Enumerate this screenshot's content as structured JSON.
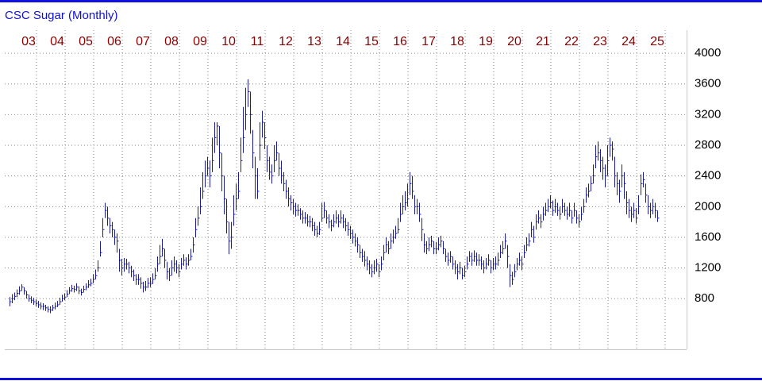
{
  "chart_data": {
    "type": "ohlc",
    "title": "CSC Sugar (Monthly)",
    "color": "#1c1ca0",
    "label_color": "#8b0000",
    "grid": true,
    "y_axis_side": "right",
    "ylim": [
      140,
      4260
    ],
    "yticks": [
      800,
      1200,
      1600,
      2000,
      2400,
      2800,
      3200,
      3600,
      4000
    ],
    "categories": [
      null,
      null,
      null,
      null,
      null,
      null,
      null,
      null,
      "03",
      null,
      null,
      null,
      null,
      null,
      null,
      null,
      null,
      null,
      null,
      null,
      "04",
      null,
      null,
      null,
      null,
      null,
      null,
      null,
      null,
      null,
      null,
      null,
      "05",
      null,
      null,
      null,
      null,
      null,
      null,
      null,
      null,
      null,
      null,
      null,
      "06",
      null,
      null,
      null,
      null,
      null,
      null,
      null,
      null,
      null,
      null,
      null,
      "07",
      null,
      null,
      null,
      null,
      null,
      null,
      null,
      null,
      null,
      null,
      null,
      "08",
      null,
      null,
      null,
      null,
      null,
      null,
      null,
      null,
      null,
      null,
      null,
      "09",
      null,
      null,
      null,
      null,
      null,
      null,
      null,
      null,
      null,
      null,
      null,
      "10",
      null,
      null,
      null,
      null,
      null,
      null,
      null,
      null,
      null,
      null,
      null,
      "11",
      null,
      null,
      null,
      null,
      null,
      null,
      null,
      null,
      null,
      null,
      null,
      "12",
      null,
      null,
      null,
      null,
      null,
      null,
      null,
      null,
      null,
      null,
      null,
      "13",
      null,
      null,
      null,
      null,
      null,
      null,
      null,
      null,
      null,
      null,
      null,
      "14",
      null,
      null,
      null,
      null,
      null,
      null,
      null,
      null,
      null,
      null,
      null,
      "15",
      null,
      null,
      null,
      null,
      null,
      null,
      null,
      null,
      null,
      null,
      null,
      "16",
      null,
      null,
      null,
      null,
      null,
      null,
      null,
      null,
      null,
      null,
      null,
      "17",
      null,
      null,
      null,
      null,
      null,
      null,
      null,
      null,
      null,
      null,
      null,
      "18",
      null,
      null,
      null,
      null,
      null,
      null,
      null,
      null,
      null,
      null,
      null,
      "19",
      null,
      null,
      null,
      null,
      null,
      null,
      null,
      null,
      null,
      null,
      null,
      "20",
      null,
      null,
      null,
      null,
      null,
      null,
      null,
      null,
      null,
      null,
      null,
      "21",
      null,
      null,
      null,
      null,
      null,
      null,
      null,
      null,
      null,
      null,
      null,
      "22",
      null,
      null,
      null,
      null,
      null,
      null,
      null,
      null,
      null,
      null,
      null,
      "23",
      null,
      null,
      null,
      null,
      null,
      null,
      null,
      null,
      null,
      null,
      null,
      "24",
      null,
      null,
      null,
      null,
      null,
      null,
      null,
      null,
      null,
      null,
      null,
      "25"
    ],
    "high": [
      820,
      860,
      880,
      920,
      960,
      990,
      950,
      900,
      850,
      830,
      810,
      790,
      770,
      750,
      740,
      720,
      700,
      700,
      720,
      750,
      770,
      810,
      850,
      870,
      910,
      950,
      980,
      970,
      1000,
      960,
      930,
      970,
      1000,
      1040,
      1060,
      1120,
      1180,
      1300,
      1550,
      1850,
      2050,
      2000,
      1850,
      1800,
      1700,
      1650,
      1450,
      1320,
      1330,
      1320,
      1280,
      1230,
      1180,
      1120,
      1120,
      1080,
      1020,
      1030,
      1070,
      1080,
      1130,
      1200,
      1350,
      1500,
      1580,
      1450,
      1280,
      1200,
      1300,
      1350,
      1300,
      1250,
      1330,
      1380,
      1340,
      1380,
      1450,
      1600,
      1850,
      2000,
      2250,
      2450,
      2600,
      2650,
      2600,
      2900,
      3100,
      3100,
      3050,
      2700,
      2400,
      2100,
      1800,
      1800,
      2150,
      2300,
      2450,
      2900,
      3300,
      3550,
      3660,
      3500,
      3000,
      2650,
      2500,
      3100,
      3250,
      3100,
      2800,
      2650,
      2550,
      2800,
      2850,
      2700,
      2600,
      2450,
      2350,
      2250,
      2150,
      2100,
      2050,
      2030,
      1980,
      1950,
      1930,
      1900,
      1880,
      1850,
      1800,
      1750,
      1800,
      2050,
      2060,
      1950,
      1900,
      1830,
      1900,
      1950,
      1900,
      1950,
      1900,
      1850,
      1800,
      1750,
      1700,
      1650,
      1600,
      1500,
      1450,
      1420,
      1350,
      1300,
      1250,
      1300,
      1320,
      1250,
      1350,
      1500,
      1600,
      1550,
      1650,
      1700,
      1750,
      1850,
      2050,
      2150,
      2200,
      2300,
      2450,
      2400,
      2150,
      2100,
      2050,
      1850,
      1650,
      1550,
      1600,
      1620,
      1550,
      1540,
      1600,
      1620,
      1550,
      1450,
      1400,
      1420,
      1350,
      1300,
      1250,
      1280,
      1200,
      1230,
      1350,
      1420,
      1400,
      1430,
      1400,
      1380,
      1350,
      1300,
      1330,
      1380,
      1300,
      1330,
      1350,
      1400,
      1500,
      1550,
      1650,
      1500,
      1250,
      1150,
      1250,
      1330,
      1400,
      1350,
      1500,
      1600,
      1650,
      1800,
      1750,
      1900,
      1950,
      1900,
      2000,
      2050,
      2100,
      2150,
      2080,
      2100,
      2050,
      2000,
      2100,
      2050,
      2000,
      2050,
      1950,
      2050,
      1950,
      1900,
      2000,
      2100,
      2250,
      2300,
      2400,
      2550,
      2800,
      2850,
      2750,
      2650,
      2550,
      2800,
      2900,
      2850,
      2650,
      2450,
      2350,
      2550,
      2450,
      2200,
      2100,
      2000,
      2050,
      1980,
      2150,
      2420,
      2450,
      2300,
      2150,
      2050,
      2100,
      2050,
      1950
    ],
    "low": [
      700,
      740,
      780,
      820,
      850,
      900,
      850,
      800,
      760,
      740,
      720,
      700,
      680,
      660,
      650,
      640,
      620,
      610,
      640,
      660,
      690,
      720,
      760,
      780,
      820,
      860,
      890,
      880,
      900,
      860,
      840,
      880,
      910,
      940,
      960,
      1000,
      1050,
      1150,
      1350,
      1600,
      1850,
      1750,
      1650,
      1600,
      1500,
      1400,
      1150,
      1100,
      1150,
      1180,
      1130,
      1080,
      1030,
      980,
      980,
      930,
      880,
      900,
      940,
      950,
      990,
      1050,
      1150,
      1250,
      1350,
      1200,
      1050,
      1030,
      1100,
      1150,
      1130,
      1080,
      1180,
      1230,
      1180,
      1230,
      1300,
      1400,
      1600,
      1750,
      1900,
      2100,
      2250,
      2400,
      2250,
      2450,
      2700,
      2800,
      2500,
      2200,
      1900,
      1650,
      1380,
      1450,
      1750,
      1950,
      2100,
      2450,
      2700,
      3000,
      3300,
      2950,
      2500,
      2100,
      2100,
      2600,
      2900,
      2750,
      2450,
      2350,
      2300,
      2450,
      2600,
      2400,
      2300,
      2200,
      2100,
      2000,
      1950,
      1900,
      1870,
      1880,
      1830,
      1780,
      1780,
      1740,
      1730,
      1680,
      1620,
      1600,
      1630,
      1800,
      1850,
      1780,
      1720,
      1680,
      1730,
      1780,
      1730,
      1780,
      1720,
      1680,
      1620,
      1580,
      1520,
      1480,
      1400,
      1330,
      1280,
      1220,
      1170,
      1120,
      1080,
      1120,
      1150,
      1080,
      1170,
      1300,
      1400,
      1380,
      1450,
      1520,
      1580,
      1650,
      1800,
      1900,
      1950,
      2000,
      2150,
      2100,
      1900,
      1900,
      1800,
      1550,
      1400,
      1380,
      1420,
      1470,
      1380,
      1380,
      1430,
      1470,
      1380,
      1280,
      1230,
      1270,
      1180,
      1120,
      1050,
      1120,
      1050,
      1080,
      1180,
      1280,
      1230,
      1280,
      1230,
      1230,
      1180,
      1130,
      1180,
      1230,
      1130,
      1170,
      1180,
      1230,
      1330,
      1380,
      1450,
      1200,
      950,
      980,
      1080,
      1170,
      1230,
      1170,
      1330,
      1420,
      1480,
      1600,
      1530,
      1700,
      1780,
      1720,
      1820,
      1880,
      1930,
      1980,
      1880,
      1920,
      1880,
      1830,
      1920,
      1880,
      1830,
      1870,
      1780,
      1870,
      1780,
      1730,
      1820,
      1920,
      2050,
      2120,
      2200,
      2300,
      2500,
      2600,
      2450,
      2350,
      2250,
      2400,
      2650,
      2600,
      2250,
      2150,
      2050,
      2250,
      2100,
      1900,
      1850,
      1800,
      1850,
      1780,
      1900,
      2150,
      2250,
      2050,
      1900,
      1850,
      1900,
      1850,
      1800
    ],
    "close": [
      760,
      800,
      830,
      870,
      900,
      950,
      900,
      850,
      800,
      780,
      760,
      740,
      720,
      700,
      700,
      680,
      660,
      650,
      680,
      700,
      720,
      760,
      800,
      820,
      860,
      900,
      930,
      920,
      950,
      900,
      880,
      920,
      950,
      980,
      1000,
      1050,
      1100,
      1200,
      1400,
      1700,
      1950,
      1850,
      1750,
      1700,
      1600,
      1550,
      1300,
      1200,
      1250,
      1250,
      1200,
      1150,
      1100,
      1050,
      1050,
      1000,
      950,
      950,
      1000,
      1000,
      1050,
      1100,
      1250,
      1350,
      1450,
      1300,
      1150,
      1100,
      1200,
      1250,
      1200,
      1150,
      1250,
      1300,
      1250,
      1300,
      1350,
      1500,
      1700,
      1850,
      2000,
      2200,
      2400,
      2500,
      2400,
      2600,
      2900,
      3050,
      2700,
      2400,
      2100,
      1800,
      1550,
      1600,
      1900,
      2100,
      2200,
      2600,
      2900,
      3200,
      3500,
      3200,
      2700,
      2400,
      2200,
      2800,
      3100,
      2900,
      2600,
      2450,
      2400,
      2600,
      2700,
      2500,
      2400,
      2300,
      2200,
      2100,
      2050,
      2000,
      1950,
      1950,
      1900,
      1850,
      1850,
      1800,
      1800,
      1750,
      1700,
      1650,
      1700,
      1850,
      1950,
      1850,
      1800,
      1750,
      1800,
      1850,
      1800,
      1850,
      1800,
      1750,
      1700,
      1650,
      1600,
      1550,
      1500,
      1400,
      1350,
      1300,
      1250,
      1200,
      1150,
      1200,
      1250,
      1150,
      1250,
      1400,
      1500,
      1450,
      1550,
      1600,
      1650,
      1700,
      1900,
      2000,
      2050,
      2100,
      2300,
      2200,
      2000,
      2000,
      1900,
      1700,
      1500,
      1450,
      1500,
      1550,
      1450,
      1450,
      1500,
      1550,
      1450,
      1350,
      1300,
      1350,
      1250,
      1200,
      1150,
      1200,
      1100,
      1150,
      1250,
      1350,
      1300,
      1350,
      1300,
      1300,
      1250,
      1200,
      1250,
      1300,
      1200,
      1250,
      1250,
      1300,
      1400,
      1450,
      1550,
      1350,
      1100,
      1050,
      1150,
      1250,
      1300,
      1250,
      1400,
      1500,
      1550,
      1700,
      1600,
      1800,
      1850,
      1800,
      1900,
      1950,
      2000,
      2050,
      1950,
      2000,
      1950,
      1900,
      2000,
      1950,
      1900,
      1950,
      1850,
      1950,
      1850,
      1800,
      1900,
      2000,
      2150,
      2200,
      2300,
      2400,
      2650,
      2700,
      2600,
      2500,
      2400,
      2600,
      2800,
      2750,
      2400,
      2300,
      2200,
      2400,
      2300,
      2050,
      1950,
      1900,
      1950,
      1850,
      2000,
      2300,
      2350,
      2150,
      2000,
      1950,
      2000,
      1950,
      1850
    ]
  }
}
